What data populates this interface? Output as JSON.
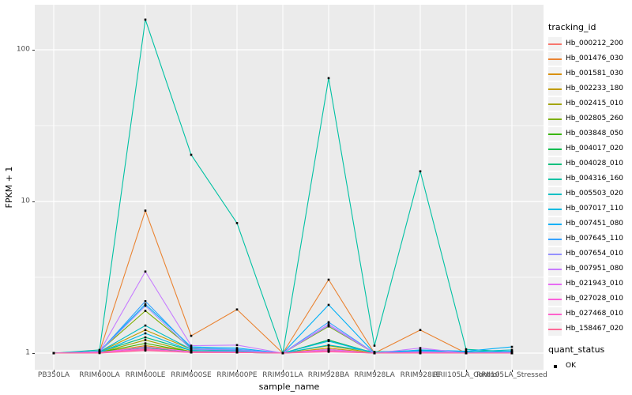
{
  "chart_data": {
    "type": "line",
    "title": "",
    "x_axis": {
      "label": "sample_name",
      "categories": [
        "PB350LA",
        "RRIM600LA",
        "RRIM600LE",
        "RRIM600SE",
        "RRIM600PE",
        "RRIM901LA",
        "RRIM928BA",
        "RRIM928LA",
        "RRIM928LE",
        "RRII105LA_Control",
        "RRII105LA_Stressed"
      ]
    },
    "y_axis": {
      "label": "FPKM + 1",
      "scale": "log10",
      "ticks": [
        1,
        10,
        100
      ],
      "tick_labels": [
        "1",
        "10",
        "100"
      ],
      "minor_ticks": [
        3.162,
        31.623
      ],
      "range_approx": [
        0.88,
        200
      ]
    },
    "grid": {
      "panel_bg": "#EBEBEB",
      "major_color": "#FFFFFF",
      "minor_color": "#FFFFFF"
    },
    "point": {
      "shape": "filled-square",
      "color": "#000000"
    },
    "legend_position": "right",
    "series": [
      {
        "name": "Hb_000212_200",
        "color": "#F8766D",
        "values": [
          1.0,
          1.01,
          1.06,
          1.01,
          1.02,
          1.0,
          1.03,
          1.0,
          1.01,
          1.0,
          1.0
        ]
      },
      {
        "name": "Hb_001476_030",
        "color": "#EA8331",
        "values": [
          1.0,
          1.02,
          8.7,
          1.3,
          1.94,
          1.0,
          3.05,
          1.0,
          1.42,
          1.0,
          1.01
        ]
      },
      {
        "name": "Hb_001581_030",
        "color": "#D89000",
        "values": [
          1.0,
          1.01,
          1.12,
          1.03,
          1.02,
          1.0,
          1.08,
          1.0,
          1.01,
          1.0,
          1.0
        ]
      },
      {
        "name": "Hb_002233_180",
        "color": "#C09B00",
        "values": [
          1.0,
          1.02,
          1.42,
          1.06,
          1.04,
          1.0,
          1.22,
          1.0,
          1.02,
          1.01,
          1.0
        ]
      },
      {
        "name": "Hb_002415_010",
        "color": "#A3A500",
        "values": [
          1.0,
          1.01,
          1.22,
          1.02,
          1.02,
          1.0,
          1.12,
          1.0,
          1.01,
          1.0,
          1.0
        ]
      },
      {
        "name": "Hb_002805_260",
        "color": "#7CAE00",
        "values": [
          1.0,
          1.03,
          1.9,
          1.08,
          1.05,
          1.0,
          1.5,
          1.0,
          1.04,
          1.01,
          1.01
        ]
      },
      {
        "name": "Hb_003848_050",
        "color": "#39B600",
        "values": [
          1.0,
          1.01,
          1.16,
          1.02,
          1.01,
          1.0,
          1.06,
          1.0,
          1.01,
          1.0,
          1.0
        ]
      },
      {
        "name": "Hb_004017_020",
        "color": "#00BB4E",
        "values": [
          1.0,
          1.01,
          1.09,
          1.01,
          1.01,
          1.0,
          1.04,
          1.0,
          1.0,
          1.0,
          1.0
        ]
      },
      {
        "name": "Hb_004028_010",
        "color": "#00BF7D",
        "values": [
          1.0,
          1.02,
          1.27,
          1.04,
          1.03,
          1.0,
          1.22,
          1.0,
          1.03,
          1.01,
          1.0
        ]
      },
      {
        "name": "Hb_004316_160",
        "color": "#00C1A3",
        "values": [
          1.0,
          1.05,
          158.0,
          20.3,
          7.2,
          1.0,
          65.0,
          1.12,
          15.8,
          1.06,
          1.02
        ]
      },
      {
        "name": "Hb_005503_020",
        "color": "#00BFC4",
        "values": [
          1.0,
          1.02,
          1.52,
          1.06,
          1.04,
          1.0,
          1.13,
          1.02,
          1.04,
          1.02,
          1.05
        ]
      },
      {
        "name": "Hb_007017_110",
        "color": "#00BAE0",
        "values": [
          1.0,
          1.01,
          1.35,
          1.04,
          1.03,
          1.0,
          1.2,
          1.0,
          1.02,
          1.01,
          1.03
        ]
      },
      {
        "name": "Hb_007451_080",
        "color": "#00B0F6",
        "values": [
          1.0,
          1.03,
          2.1,
          1.1,
          1.08,
          1.0,
          2.08,
          1.0,
          1.05,
          1.03,
          1.1
        ]
      },
      {
        "name": "Hb_007645_110",
        "color": "#35A2FF",
        "values": [
          1.0,
          1.02,
          2.2,
          1.08,
          1.06,
          1.0,
          1.6,
          1.0,
          1.03,
          1.01,
          1.02
        ]
      },
      {
        "name": "Hb_007654_010",
        "color": "#9590FF",
        "values": [
          1.0,
          1.02,
          2.05,
          1.06,
          1.05,
          1.0,
          1.52,
          1.0,
          1.02,
          1.01,
          1.01
        ]
      },
      {
        "name": "Hb_007951_080",
        "color": "#C77CFF",
        "values": [
          1.0,
          1.02,
          3.45,
          1.12,
          1.13,
          1.0,
          1.55,
          1.0,
          1.08,
          1.0,
          1.01
        ]
      },
      {
        "name": "Hb_021943_010",
        "color": "#E76BF3",
        "values": [
          1.0,
          1.01,
          1.1,
          1.02,
          1.02,
          1.0,
          1.06,
          1.0,
          1.01,
          1.0,
          1.0
        ]
      },
      {
        "name": "Hb_027028_010",
        "color": "#FA62DB",
        "values": [
          1.0,
          1.01,
          1.07,
          1.01,
          1.01,
          1.0,
          1.04,
          1.0,
          1.01,
          1.0,
          1.0
        ]
      },
      {
        "name": "Hb_027468_010",
        "color": "#FF61CC",
        "values": [
          1.0,
          1.01,
          1.05,
          1.01,
          1.01,
          1.0,
          1.03,
          1.0,
          1.0,
          1.0,
          1.0
        ]
      },
      {
        "name": "Hb_158467_020",
        "color": "#FF6A98",
        "values": [
          1.0,
          1.0,
          1.04,
          1.01,
          1.01,
          1.0,
          1.02,
          1.0,
          1.0,
          1.0,
          1.0
        ]
      }
    ]
  },
  "legend": {
    "color_legend_title": "tracking_id",
    "shape_legend_title": "quant_status",
    "shape_entries": [
      {
        "label": "OK"
      }
    ]
  }
}
